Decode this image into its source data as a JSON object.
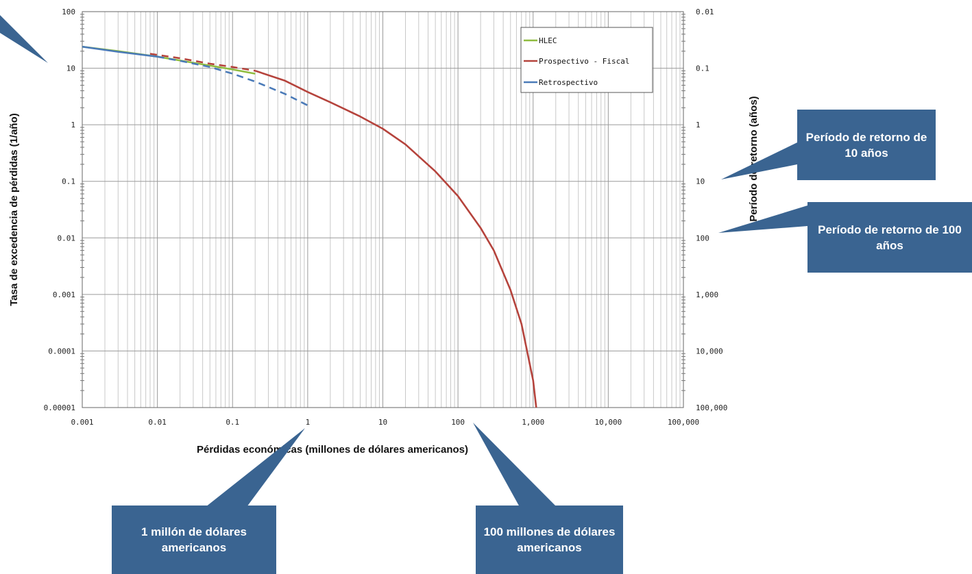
{
  "chart_data": {
    "type": "line",
    "x_scale": "log",
    "y_scale": "log",
    "xlabel": "Pérdidas económicas (millones de dólares americanos)",
    "ylabel": "Tasa de excedencia de pérdidas (1/año)",
    "y2label": "Período de retorno (años)",
    "xlim": [
      0.001,
      100000
    ],
    "ylim": [
      1e-05,
      100
    ],
    "x_ticks": [
      "0.001",
      "0.01",
      "0.1",
      "1",
      "10",
      "100",
      "1,000",
      "10,000",
      "100,000"
    ],
    "y_ticks": [
      "0.00001",
      "0.0001",
      "0.001",
      "0.01",
      "0.1",
      "1",
      "10",
      "100"
    ],
    "y2_ticks": [
      "100,000",
      "10,000",
      "1,000",
      "100",
      "10",
      "1",
      "0.1",
      "0.01"
    ],
    "grid": true,
    "legend_position": "top-right",
    "series": [
      {
        "name": "HLEC",
        "color": "#8fbc3f",
        "dash": "solid",
        "x": [
          0.001,
          0.003,
          0.01,
          0.03,
          0.1,
          0.2
        ],
        "y": [
          24,
          20,
          16,
          12.5,
          9.5,
          8
        ]
      },
      {
        "name": "Prospectivo - Fiscal",
        "color": "#b5433c",
        "dash": "mixed",
        "dashed_until": 0.25,
        "x": [
          0.008,
          0.02,
          0.05,
          0.1,
          0.2,
          0.5,
          1,
          2,
          5,
          10,
          20,
          50,
          100,
          200,
          300,
          500,
          700,
          1000,
          1100
        ],
        "y": [
          18,
          15,
          12,
          10.5,
          9,
          6,
          3.8,
          2.5,
          1.4,
          0.85,
          0.45,
          0.15,
          0.055,
          0.015,
          0.006,
          0.0012,
          0.0003,
          3e-05,
          1e-05
        ]
      },
      {
        "name": "Retrospectivo",
        "color": "#4a7ab8",
        "dash": "mixed",
        "dashed_after": 0.01,
        "x": [
          0.001,
          0.003,
          0.01,
          0.02,
          0.05,
          0.1,
          0.2,
          0.5,
          1
        ],
        "y": [
          24,
          19.5,
          16,
          13.5,
          10.5,
          8,
          5.8,
          3.5,
          2.2
        ]
      }
    ]
  },
  "callouts": {
    "return_10": "Período de retorno de 10 años",
    "return_100": "Período de retorno de 100 años",
    "one_million": "1 millón de dólares americanos",
    "hundred_million": "100 millones de dólares americanos"
  }
}
